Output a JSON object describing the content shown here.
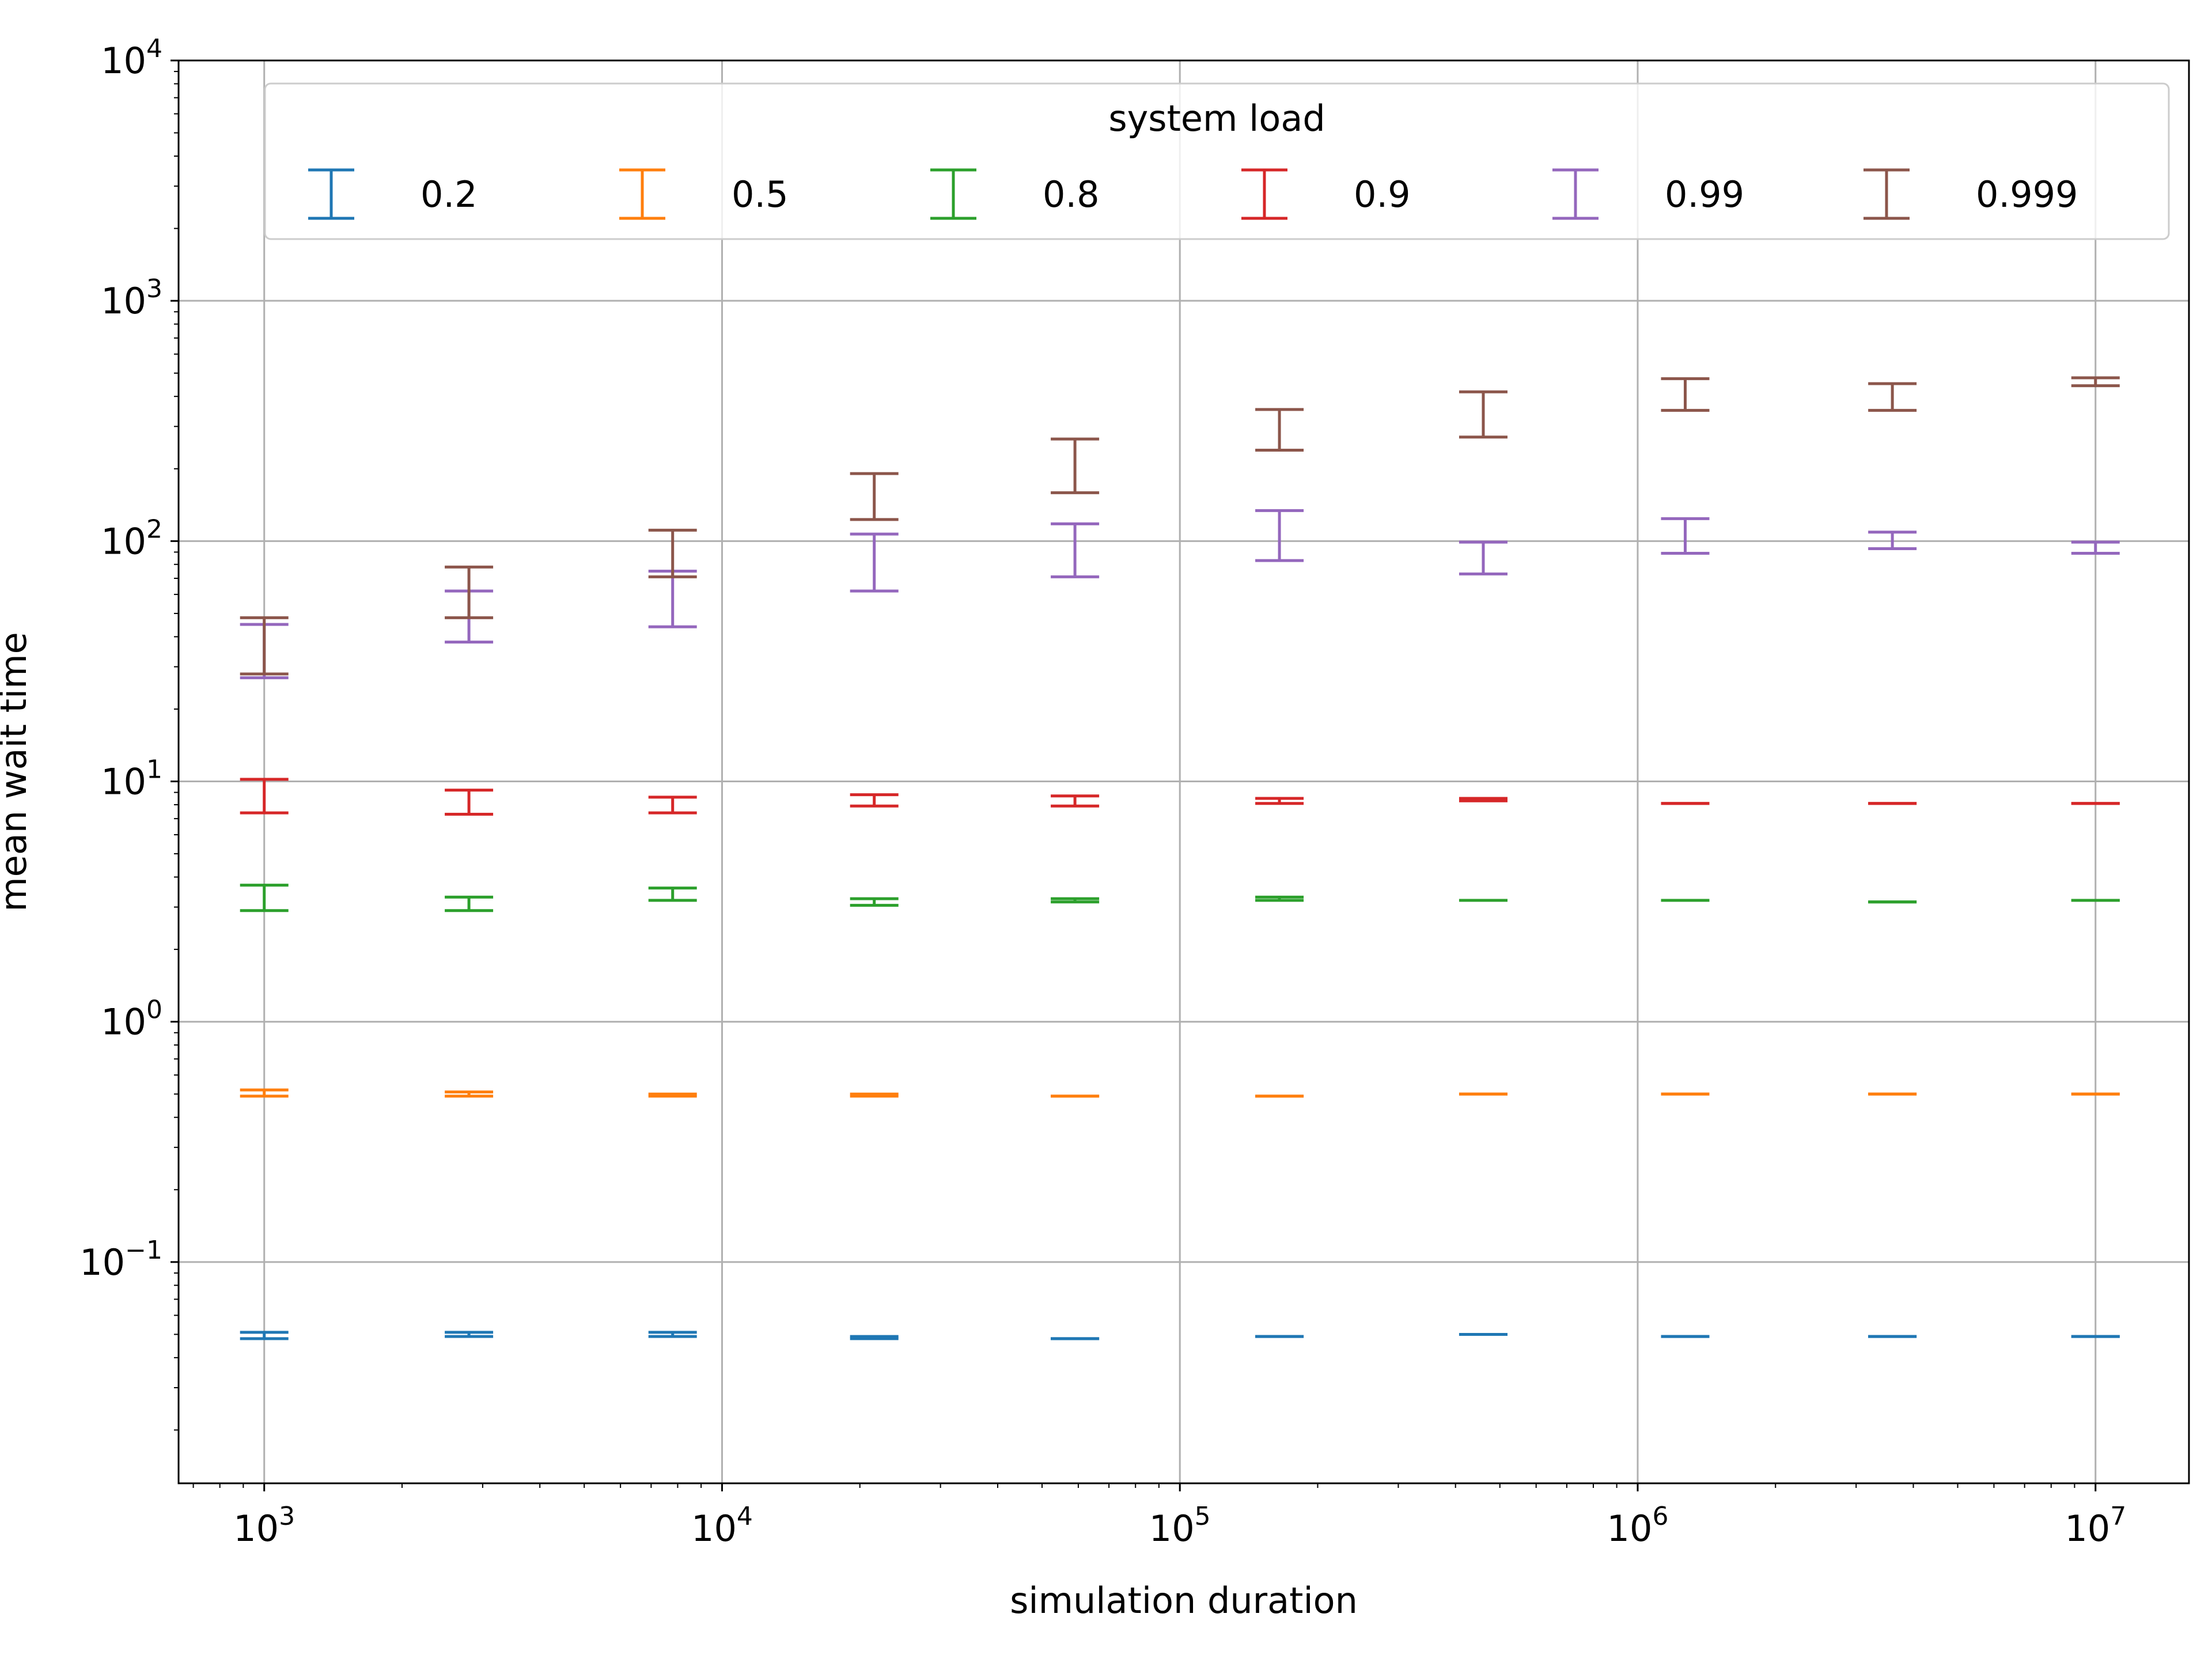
{
  "chart_data": {
    "type": "errorbar",
    "title": "",
    "xlabel": "simulation duration",
    "ylabel": "mean wait time",
    "xscale": "log",
    "yscale": "log",
    "xlim": [
      650,
      16000000
    ],
    "ylim": [
      0.012,
      10000
    ],
    "grid": true,
    "x_ticks": [
      {
        "base": "10",
        "exp": "3",
        "value": 1000
      },
      {
        "base": "10",
        "exp": "4",
        "value": 10000
      },
      {
        "base": "10",
        "exp": "5",
        "value": 100000
      },
      {
        "base": "10",
        "exp": "6",
        "value": 1000000
      },
      {
        "base": "10",
        "exp": "7",
        "value": 10000000
      }
    ],
    "y_ticks": [
      {
        "base": "10",
        "exp": "−1",
        "value": 0.1
      },
      {
        "base": "10",
        "exp": "0",
        "value": 1
      },
      {
        "base": "10",
        "exp": "1",
        "value": 10
      },
      {
        "base": "10",
        "exp": "2",
        "value": 100
      },
      {
        "base": "10",
        "exp": "3",
        "value": 1000
      },
      {
        "base": "10",
        "exp": "4",
        "value": 10000
      }
    ],
    "legend": {
      "title": "system load",
      "location": "top-center",
      "columns": 6
    },
    "x": [
      1000,
      2800,
      7800,
      21500,
      59000,
      165000,
      460000,
      1270000,
      3600000,
      10000000
    ],
    "series": [
      {
        "name": "0.2",
        "color": "#1f77b4",
        "lower": [
          0.048,
          0.049,
          0.049,
          0.048,
          0.048,
          0.049,
          0.05,
          0.049,
          0.049,
          0.049
        ],
        "upper": [
          0.051,
          0.051,
          0.051,
          0.049,
          0.048,
          0.049,
          0.05,
          0.049,
          0.049,
          0.049
        ]
      },
      {
        "name": "0.5",
        "color": "#ff7f0e",
        "lower": [
          0.49,
          0.49,
          0.49,
          0.49,
          0.49,
          0.49,
          0.5,
          0.5,
          0.5,
          0.5
        ],
        "upper": [
          0.52,
          0.51,
          0.5,
          0.5,
          0.49,
          0.49,
          0.5,
          0.5,
          0.5,
          0.5
        ]
      },
      {
        "name": "0.8",
        "color": "#2ca02c",
        "lower": [
          2.9,
          2.9,
          3.2,
          3.05,
          3.15,
          3.2,
          3.2,
          3.2,
          3.15,
          3.2
        ],
        "upper": [
          3.7,
          3.3,
          3.6,
          3.25,
          3.25,
          3.3,
          3.2,
          3.2,
          3.15,
          3.2
        ]
      },
      {
        "name": "0.9",
        "color": "#d62728",
        "lower": [
          7.4,
          7.3,
          7.4,
          7.9,
          7.9,
          8.1,
          8.3,
          8.1,
          8.1,
          8.1
        ],
        "upper": [
          10.2,
          9.2,
          8.6,
          8.8,
          8.7,
          8.5,
          8.5,
          8.1,
          8.1,
          8.1
        ]
      },
      {
        "name": "0.99",
        "color": "#9467bd",
        "lower": [
          27,
          38,
          44,
          62,
          71,
          83,
          73,
          89,
          93,
          89
        ],
        "upper": [
          45,
          62,
          75,
          107,
          118,
          134,
          99,
          124,
          109,
          99
        ]
      },
      {
        "name": "0.999",
        "color": "#8c564b",
        "lower": [
          28,
          48,
          71,
          123,
          159,
          239,
          271,
          350,
          350,
          443
        ],
        "upper": [
          48,
          78,
          111,
          191,
          266,
          353,
          418,
          474,
          452,
          478
        ]
      }
    ]
  }
}
